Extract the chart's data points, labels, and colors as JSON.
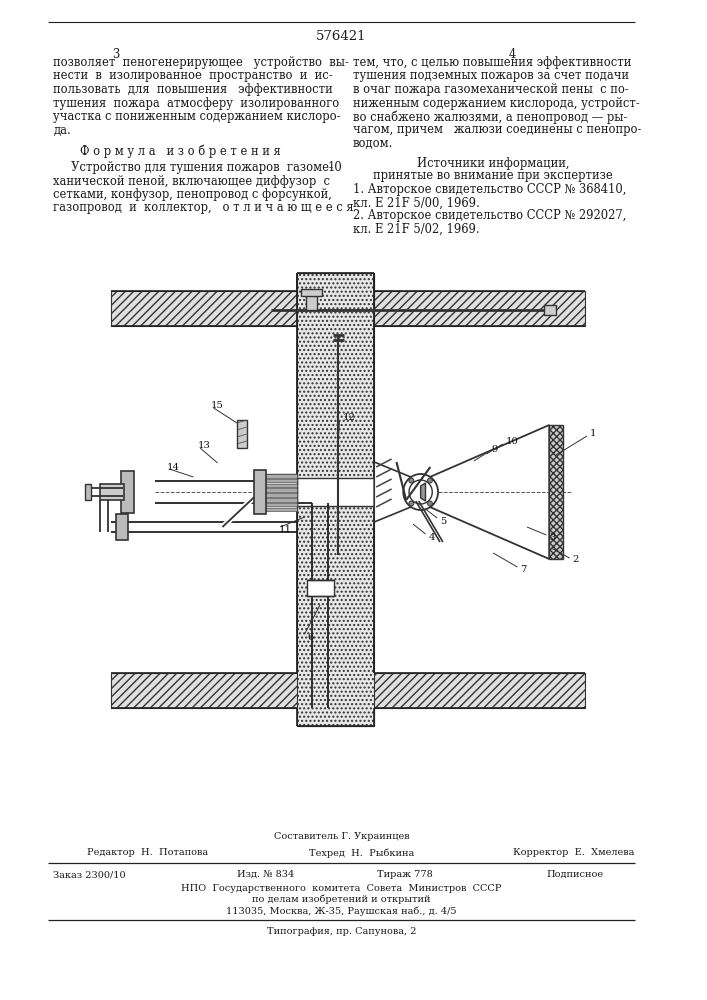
{
  "patent_number": "576421",
  "page_left": "3",
  "page_right": "4",
  "background_color": "#ffffff",
  "text_color": "#1a1a1a",
  "fig_width": 7.07,
  "fig_height": 10.0,
  "left_col_lines": [
    "позволяет  пеногенерирующее   устройство  вы-",
    "нести  в  изолированное  пространство  и  ис-",
    "пользовать  для  повышения   эффективности",
    "тушения  пожара  атмосферу  изолированного",
    "участка с пониженным содержанием кислоро-",
    "да."
  ],
  "formula_header": "Ф о р м у л а   и з о б р е т е н и я",
  "formula_lines": [
    "     Устройство для тушения пожаров  газоме-",
    "ханической пеной, включающее диффузор  с",
    "сетками, конфузор, пенопровод с форсункой,",
    "газопровод  и  коллектор,   о т л и ч а ю щ е е с я"
  ],
  "line_no": "10",
  "right_col_lines": [
    "тем, что, с целью повышения эффективности",
    "тушения подземных пожаров за счет подачи",
    "в очаг пожара газомеханической пены  с по-",
    "ниженным содержанием кислорода, устройст-",
    "во снабжено жалюзями, а пенопровод — ры-",
    "чагом, причем   жалюзи соединены с пенопро-",
    "водом."
  ],
  "src_header": "Источники информации,",
  "src_sub": "принятые во внимание при экспертизе",
  "src1a": "1. Авторское свидетельство СССР № 368410,",
  "src1b": "кл. Е 21F 5/00, 1969.",
  "src2a": "2. Авторское свидетельство СССР № 292027,",
  "src2b": "кл. Е 21F 5/02, 1969.",
  "foot_comp": "Составитель Г. Украинцев",
  "foot_ed": "Редактор  Н.  Потапова",
  "foot_tech": "Техред  Н.  Рыбкина",
  "foot_corr": "Корректор  Е.  Хмелева",
  "foot_ord": "Заказ 2300/10",
  "foot_izd": "Изд. № 834",
  "foot_tir": "Тираж 778",
  "foot_pod": "Подписное",
  "foot_npo": "НПО  Государственного  комитета  Совета  Министров  СССР",
  "foot_dela": "по делам изобретений и открытий",
  "foot_addr": "113035, Москва, Ж-35, Раушская наб., д. 4/5",
  "foot_tip": "Типография, пр. Сапунова, 2"
}
